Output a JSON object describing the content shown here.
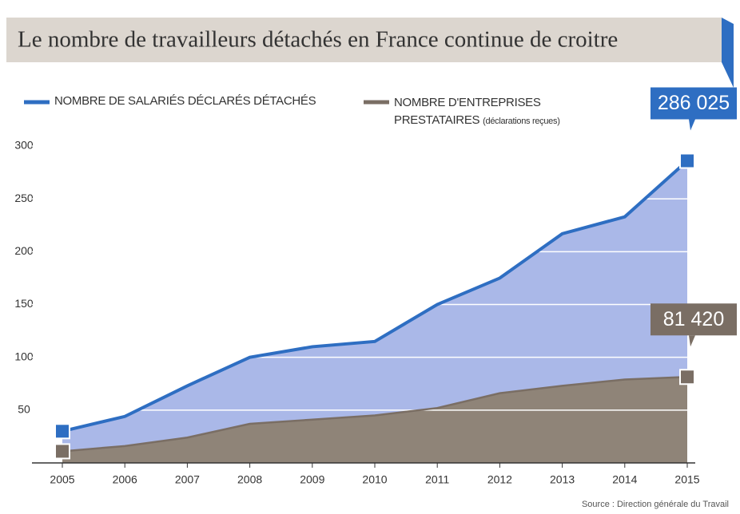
{
  "chart_data": {
    "type": "area",
    "title": "Le nombre de travailleurs détachés en France continue de croitre",
    "categories": [
      "2005",
      "2006",
      "2007",
      "2008",
      "2009",
      "2010",
      "2011",
      "2012",
      "2013",
      "2014",
      "2015"
    ],
    "series": [
      {
        "name": "NOMBRE DE SALARIÉS DÉCLARÉS DÉTACHÉS",
        "color": "#2e6ec2",
        "fill": "#aab8e8",
        "values": [
          30,
          44,
          73,
          100,
          110,
          115,
          150,
          175,
          217,
          233,
          286.025
        ],
        "value_labels": [
          null,
          null,
          null,
          null,
          null,
          null,
          null,
          null,
          null,
          null,
          "286 025"
        ]
      },
      {
        "name": "NOMBRE D'ENTREPRISES PRESTATAIRES",
        "note": "(déclarations reçues)",
        "color": "#7a6e64",
        "fill": "#8f8478",
        "values": [
          11,
          16,
          24,
          37,
          41,
          45,
          52,
          66,
          73,
          79,
          81.42
        ],
        "value_labels": [
          null,
          null,
          null,
          null,
          null,
          null,
          null,
          null,
          null,
          null,
          "81 420"
        ]
      }
    ],
    "ylim": [
      0,
      300
    ],
    "yticks": [
      50,
      100,
      150,
      200,
      250,
      300
    ],
    "grid": true,
    "source": "Source : Direction générale du Travail"
  }
}
